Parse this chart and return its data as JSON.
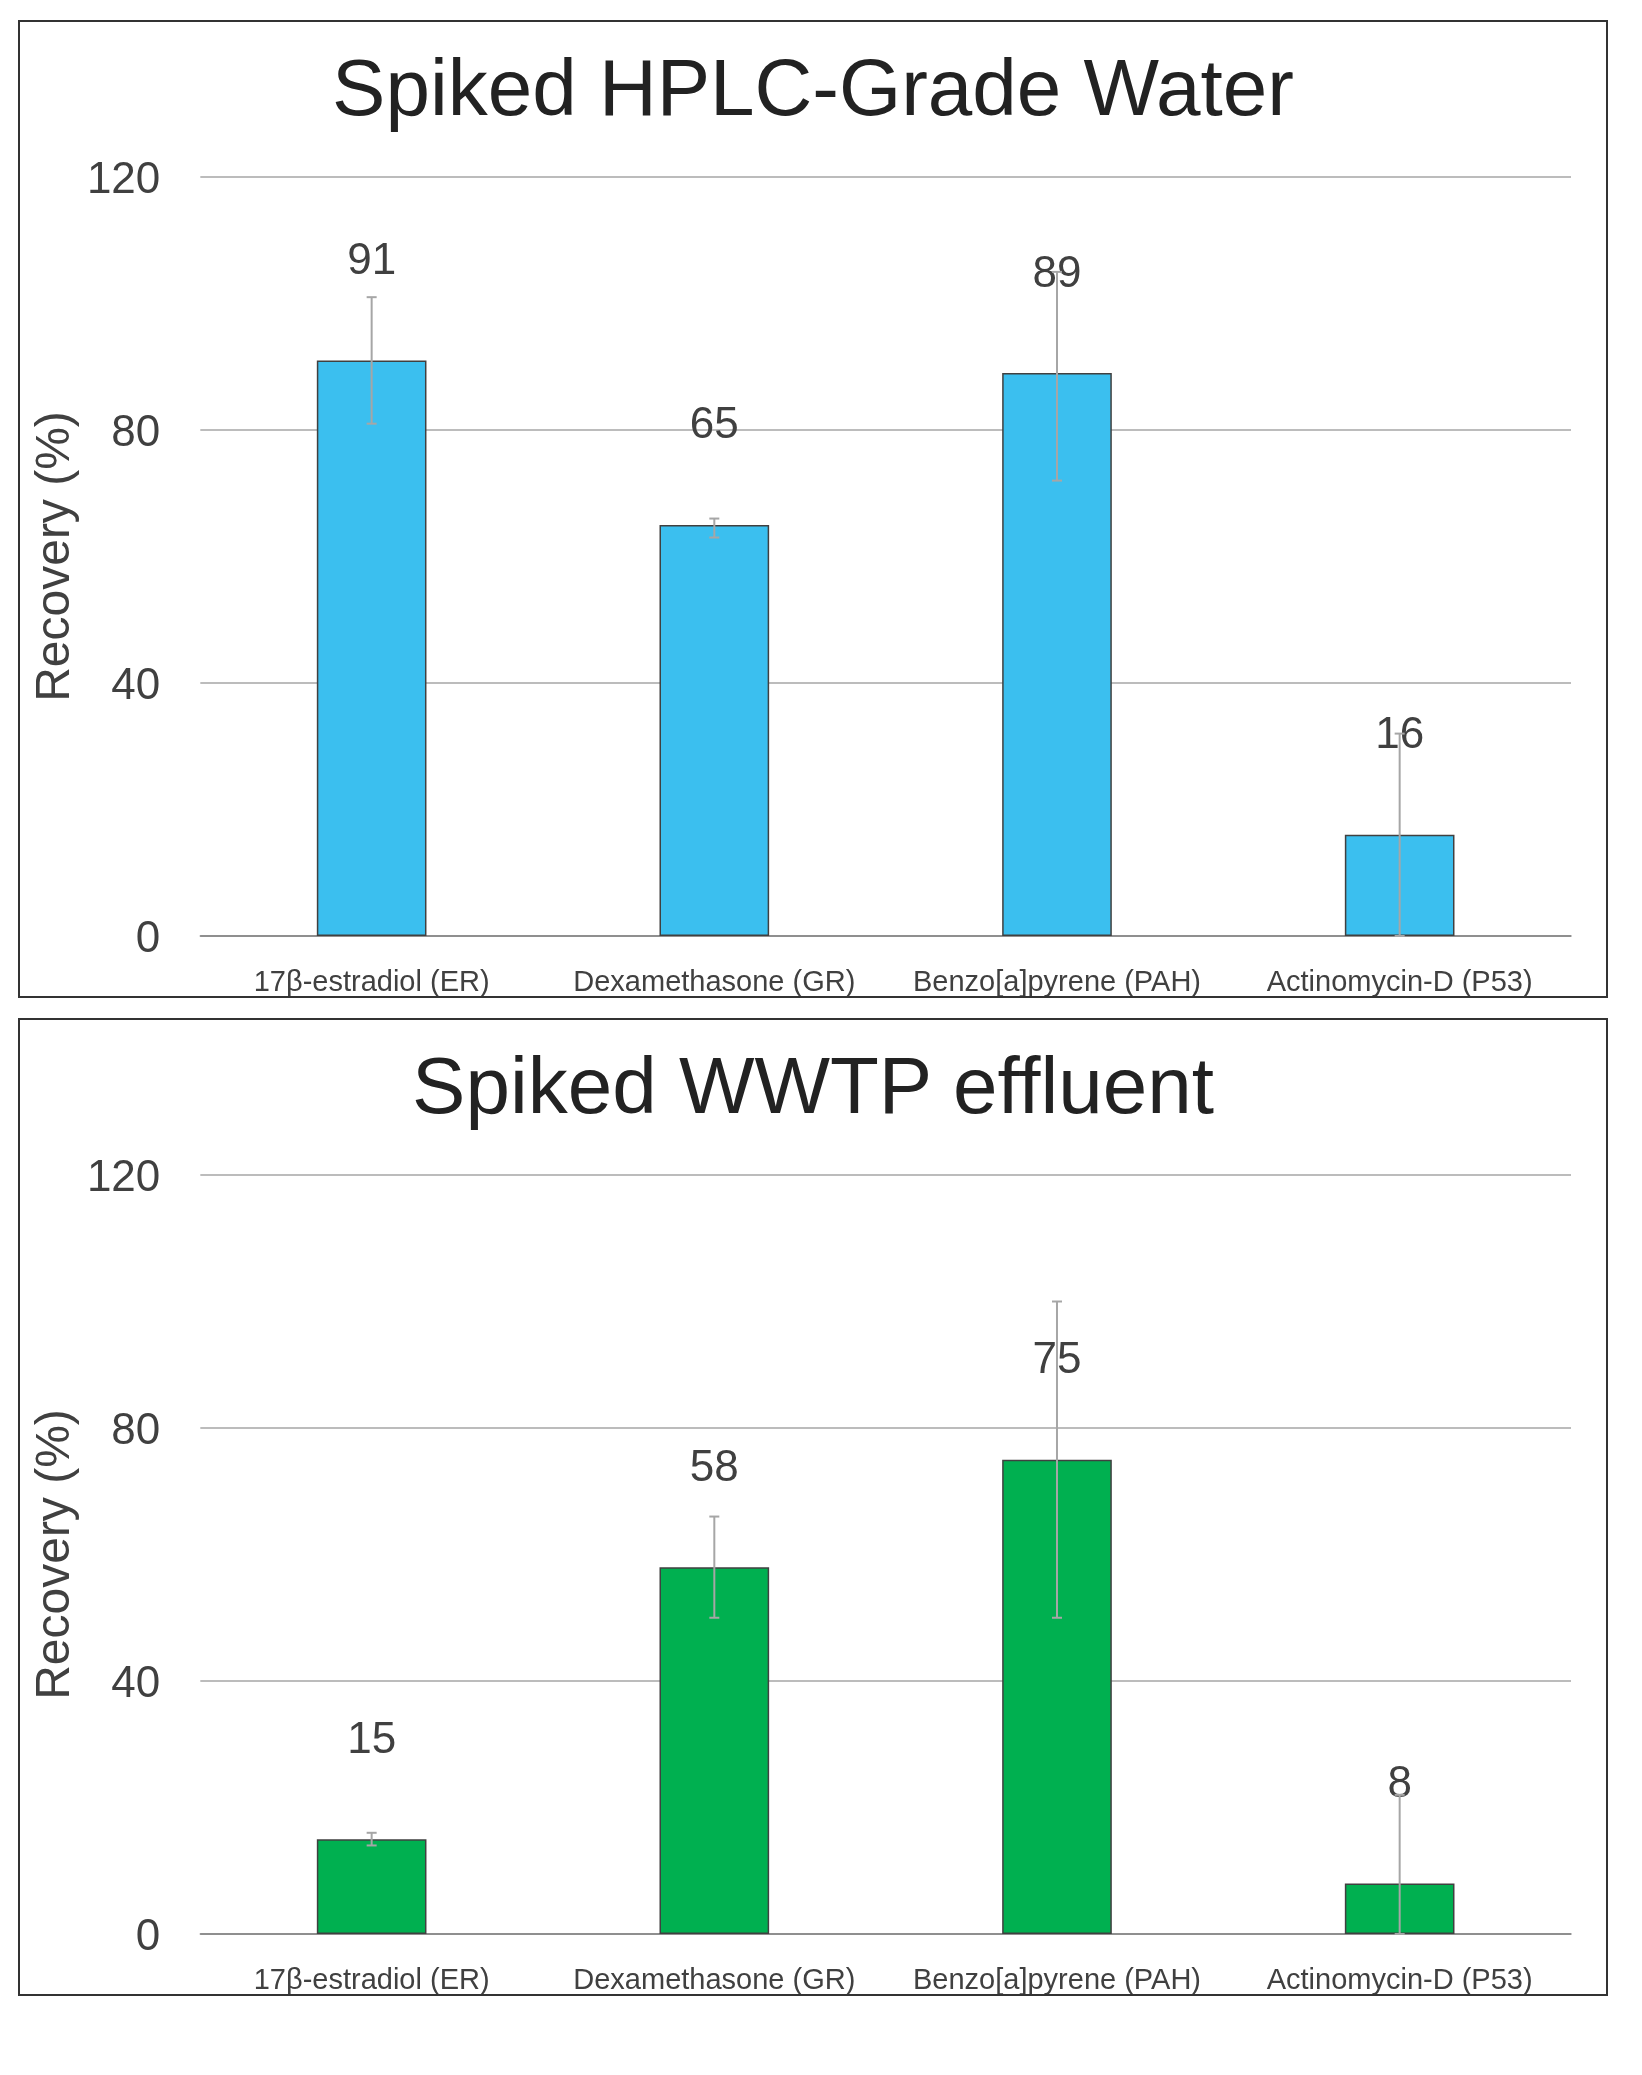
{
  "chart_data": [
    {
      "type": "bar",
      "title": "Spiked HPLC-Grade Water",
      "ylabel": "Recovery (%)",
      "categories": [
        "17β-estradiol (ER)",
        "Dexamethasone (GR)",
        "Benzo[a]pyrene (PAH)",
        "Actinomycin-D (P53)"
      ],
      "values": [
        91,
        65,
        89,
        16
      ],
      "errors": [
        [
          81,
          101
        ],
        [
          63,
          66
        ],
        [
          72,
          105
        ],
        [
          0,
          32
        ]
      ],
      "color": "#3bbfef",
      "ylim": [
        0,
        120
      ],
      "yticks": [
        0,
        40,
        80,
        120
      ],
      "grid": "y",
      "data_labels": true
    },
    {
      "type": "bar",
      "title": "Spiked WWTP effluent",
      "ylabel": "Recovery (%)",
      "categories": [
        "17β-estradiol (ER)",
        "Dexamethasone (GR)",
        "Benzo[a]pyrene (PAH)",
        "Actinomycin-D (P53)"
      ],
      "values": [
        15,
        58,
        75,
        8
      ],
      "errors": [
        [
          14,
          16
        ],
        [
          50,
          66
        ],
        [
          50,
          100
        ],
        [
          0,
          22
        ]
      ],
      "color": "#00b050",
      "ylim": [
        0,
        120
      ],
      "yticks": [
        0,
        40,
        80,
        120
      ],
      "grid": "y",
      "data_labels": true
    }
  ]
}
